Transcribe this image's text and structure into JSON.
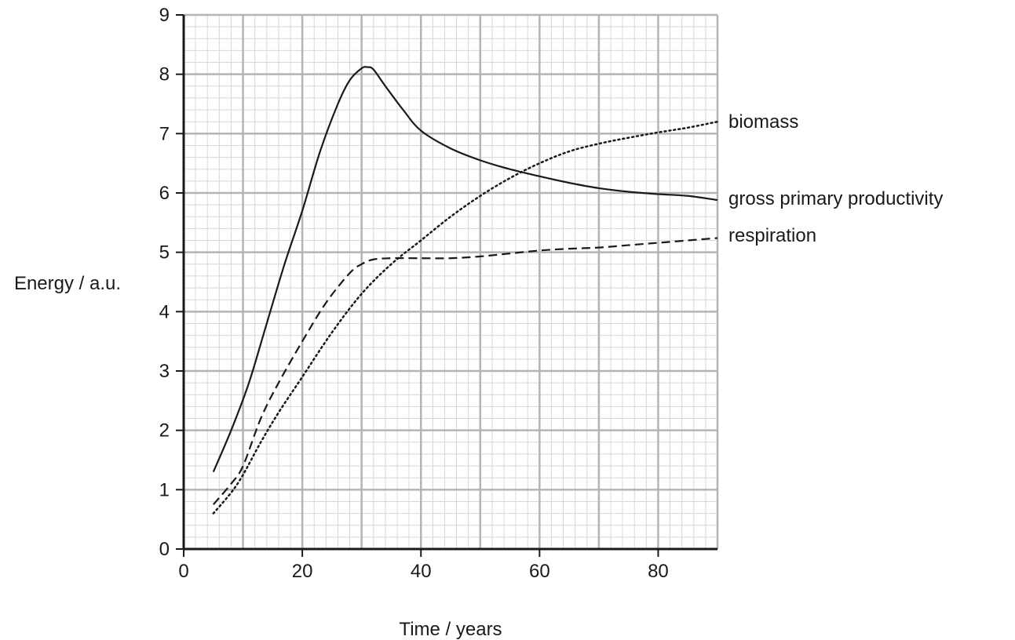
{
  "chart_data": {
    "type": "line",
    "xlabel": "Time / years",
    "ylabel": "Energy / a.u.",
    "xlim": [
      0,
      90
    ],
    "ylim": [
      0,
      9
    ],
    "x_ticks": [
      "0",
      "20",
      "40",
      "60",
      "80"
    ],
    "y_ticks": [
      "0",
      "1",
      "2",
      "3",
      "4",
      "5",
      "6",
      "7",
      "8",
      "9"
    ],
    "grid": true,
    "legend": "right",
    "series": [
      {
        "name": "gross primary productivity",
        "line_style": "solid",
        "x": [
          5,
          8,
          11,
          14,
          17,
          20,
          23,
          26,
          28,
          30,
          31,
          32,
          34,
          37,
          40,
          45,
          50,
          55,
          60,
          65,
          70,
          75,
          80,
          85,
          90
        ],
        "y": [
          1.3,
          2.0,
          2.8,
          3.8,
          4.8,
          5.7,
          6.7,
          7.5,
          7.9,
          8.1,
          8.12,
          8.08,
          7.8,
          7.4,
          7.05,
          6.75,
          6.55,
          6.4,
          6.28,
          6.17,
          6.08,
          6.02,
          5.98,
          5.95,
          5.88
        ]
      },
      {
        "name": "respiration",
        "line_style": "dashed",
        "x": [
          5,
          8,
          10,
          13,
          16,
          20,
          24,
          28,
          30,
          32,
          35,
          40,
          45,
          50,
          55,
          60,
          65,
          70,
          75,
          80,
          85,
          90
        ],
        "y": [
          0.75,
          1.1,
          1.4,
          2.2,
          2.8,
          3.5,
          4.15,
          4.65,
          4.8,
          4.88,
          4.9,
          4.9,
          4.9,
          4.93,
          4.98,
          5.03,
          5.06,
          5.08,
          5.12,
          5.16,
          5.2,
          5.24
        ]
      },
      {
        "name": "biomass",
        "line_style": "dotted",
        "x": [
          5,
          8,
          10,
          13,
          16,
          20,
          25,
          30,
          35,
          40,
          45,
          50,
          55,
          60,
          65,
          70,
          75,
          80,
          85,
          90
        ],
        "y": [
          0.6,
          0.95,
          1.25,
          1.8,
          2.3,
          2.9,
          3.65,
          4.3,
          4.8,
          5.2,
          5.6,
          5.95,
          6.25,
          6.5,
          6.7,
          6.83,
          6.93,
          7.02,
          7.1,
          7.2
        ]
      }
    ]
  },
  "colors": {
    "line": "#1a1a1a",
    "grid_major": "#b4b4b4",
    "grid_minor": "#d8d8d8",
    "axis": "#1a1a1a"
  }
}
